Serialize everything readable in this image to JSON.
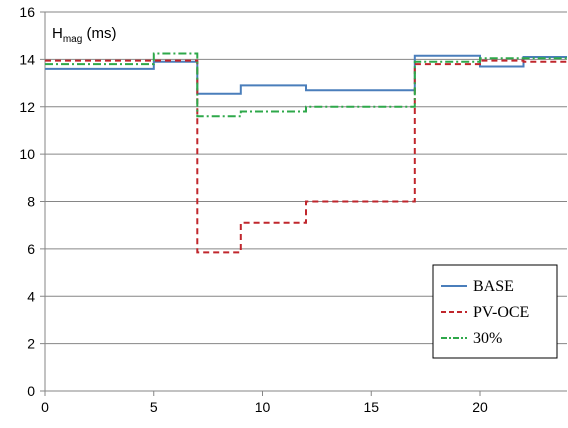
{
  "chart_data": {
    "type": "line",
    "title": "",
    "annotation": {
      "main": "H",
      "sub": "mag",
      "rest": " (ms)"
    },
    "xlabel": "",
    "ylabel": "",
    "xlim": [
      0,
      24
    ],
    "ylim": [
      0,
      16
    ],
    "xticks": [
      0,
      5,
      10,
      15,
      20
    ],
    "yticks": [
      0,
      2,
      4,
      6,
      8,
      10,
      12,
      14,
      16
    ],
    "grid": "horizontal",
    "legend_position": "bottom-right",
    "series": [
      {
        "name": "BASE",
        "color": "#4A7EBB",
        "dash": "solid",
        "x": [
          0,
          5,
          5,
          7,
          7,
          9,
          9,
          12,
          12,
          17,
          17,
          20,
          20,
          22,
          22,
          24
        ],
        "y": [
          13.6,
          13.6,
          13.9,
          13.9,
          12.55,
          12.55,
          12.9,
          12.9,
          12.7,
          12.7,
          14.15,
          14.15,
          13.7,
          13.7,
          14.1,
          14.1
        ]
      },
      {
        "name": "PV-OCE",
        "color": "#C0262C",
        "dash": "dashed",
        "x": [
          0,
          7,
          7,
          9,
          9,
          12,
          12,
          17,
          17,
          20,
          20,
          22,
          22,
          24
        ],
        "y": [
          13.95,
          13.95,
          5.85,
          5.85,
          7.1,
          7.1,
          8.0,
          8.0,
          13.8,
          13.8,
          13.95,
          13.95,
          13.9,
          13.9
        ]
      },
      {
        "name": "30%",
        "color": "#2EA84A",
        "dash": "dashdot",
        "x": [
          0,
          5,
          5,
          7,
          7,
          9,
          9,
          12,
          12,
          17,
          17,
          20,
          20,
          24
        ],
        "y": [
          13.8,
          13.8,
          14.25,
          14.25,
          11.6,
          11.6,
          11.8,
          11.8,
          12.0,
          12.0,
          13.9,
          13.9,
          14.05,
          14.05
        ]
      }
    ]
  }
}
